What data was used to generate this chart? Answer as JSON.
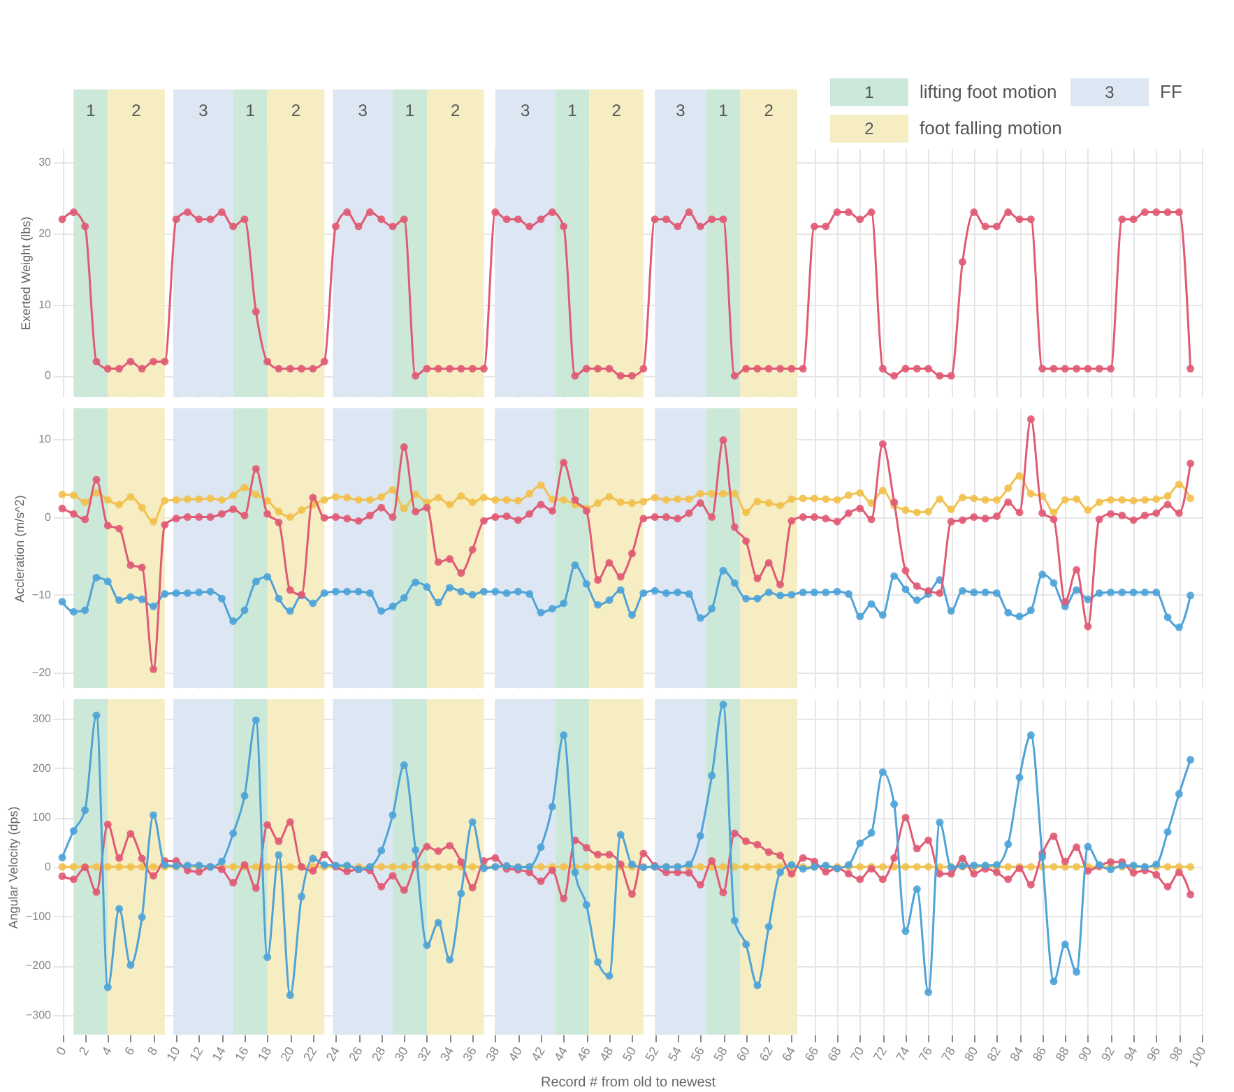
{
  "chart_data": [
    {
      "type": "line",
      "ylabel": "Exerted Weight (lbs)",
      "xlim": [
        -0.8,
        100
      ],
      "ylim": [
        -3,
        32
      ],
      "yticks": [
        0,
        10,
        20,
        30
      ],
      "xticks": [
        0,
        2,
        4,
        6,
        8,
        10,
        12,
        14,
        16,
        18,
        20,
        22,
        24,
        26,
        28,
        30,
        32,
        34,
        36,
        38,
        40,
        42,
        44,
        46,
        48,
        50,
        52,
        54,
        56,
        58,
        60,
        62,
        64,
        66,
        68,
        70,
        72,
        74,
        76,
        78,
        80,
        82,
        84,
        86,
        88,
        90,
        92,
        94,
        96,
        98,
        100
      ],
      "grid": true,
      "tick_labels": "y",
      "marker": "circle",
      "line_style": "solid",
      "annotations": [
        "lifting foot motion",
        "foot falling motion",
        "FF"
      ],
      "x": [
        0,
        1,
        2,
        3,
        4,
        5,
        6,
        7,
        8,
        9,
        10,
        11,
        12,
        13,
        14,
        15,
        16,
        17,
        18,
        19,
        20,
        21,
        22,
        23,
        24,
        25,
        26,
        27,
        28,
        29,
        30,
        31,
        32,
        33,
        34,
        35,
        36,
        37,
        38,
        39,
        40,
        41,
        42,
        43,
        44,
        45,
        46,
        47,
        48,
        49,
        50,
        51,
        52,
        53,
        54,
        55,
        56,
        57,
        58,
        59,
        60,
        61,
        62,
        63,
        64,
        65,
        66,
        67,
        68,
        69,
        70,
        71,
        72,
        73,
        74,
        75,
        76,
        77,
        78,
        79,
        80,
        81,
        82,
        83,
        84,
        85,
        86,
        87,
        88,
        89,
        90,
        91,
        92,
        93,
        94,
        95,
        96,
        97,
        98,
        99
      ],
      "series": [
        {
          "color": "#e05a74",
          "values": [
            22,
            23,
            21,
            2,
            1,
            1,
            2,
            1,
            2,
            2,
            22,
            23,
            22,
            22,
            23,
            21,
            22,
            9,
            2,
            1,
            1,
            1,
            1,
            2,
            21,
            23,
            21,
            23,
            22,
            21,
            22,
            0,
            1,
            1,
            1,
            1,
            1,
            1,
            23,
            22,
            22,
            21,
            22,
            23,
            21,
            0,
            1,
            1,
            1,
            0,
            0,
            1,
            22,
            22,
            21,
            23,
            21,
            22,
            22,
            0,
            1,
            1,
            1,
            1,
            1,
            1,
            21,
            21,
            23,
            23,
            22,
            23,
            1,
            0,
            1,
            1,
            1,
            0,
            0,
            16,
            23,
            21,
            21,
            23,
            22,
            22,
            1,
            1,
            1,
            1,
            1,
            1,
            1,
            22,
            22,
            23,
            23,
            23,
            23,
            1
          ]
        }
      ],
      "bands": [
        {
          "axis": "x",
          "from": 1,
          "to": 4,
          "label": "1",
          "color": "#cce8d8"
        },
        {
          "axis": "x",
          "from": 4,
          "to": 9,
          "label": "2",
          "color": "#f6edc3"
        },
        {
          "axis": "x",
          "from": 9.75,
          "to": 15,
          "label": "3",
          "color": "#dde7f3"
        },
        {
          "axis": "x",
          "from": 15,
          "to": 18,
          "label": "1",
          "color": "#cce8d8"
        },
        {
          "axis": "x",
          "from": 18,
          "to": 23,
          "label": "2",
          "color": "#f6edc3"
        },
        {
          "axis": "x",
          "from": 23.75,
          "to": 29,
          "label": "3",
          "color": "#dde7f3"
        },
        {
          "axis": "x",
          "from": 29,
          "to": 32,
          "label": "1",
          "color": "#cce8d8"
        },
        {
          "axis": "x",
          "from": 32,
          "to": 37,
          "label": "2",
          "color": "#f6edc3"
        },
        {
          "axis": "x",
          "from": 38,
          "to": 43.25,
          "label": "3",
          "color": "#dde7f3"
        },
        {
          "axis": "x",
          "from": 43.25,
          "to": 46.25,
          "label": "1",
          "color": "#cce8d8"
        },
        {
          "axis": "x",
          "from": 46.25,
          "to": 51,
          "label": "2",
          "color": "#f6edc3"
        },
        {
          "axis": "x",
          "from": 52,
          "to": 56.5,
          "label": "3",
          "color": "#dde7f3"
        },
        {
          "axis": "x",
          "from": 56.5,
          "to": 59.5,
          "label": "1",
          "color": "#cce8d8"
        },
        {
          "axis": "x",
          "from": 59.5,
          "to": 64.5,
          "label": "2",
          "color": "#f6edc3"
        }
      ]
    },
    {
      "type": "line",
      "ylabel": "Accleration (m/s^2)",
      "xlim": [
        -0.8,
        100
      ],
      "ylim": [
        -22,
        14
      ],
      "yticks": [
        -20,
        -10,
        0,
        10
      ],
      "xticks": [
        0,
        2,
        4,
        6,
        8,
        10,
        12,
        14,
        16,
        18,
        20,
        22,
        24,
        26,
        28,
        30,
        32,
        34,
        36,
        38,
        40,
        42,
        44,
        46,
        48,
        50,
        52,
        54,
        56,
        58,
        60,
        62,
        64,
        66,
        68,
        70,
        72,
        74,
        76,
        78,
        80,
        82,
        84,
        86,
        88,
        90,
        92,
        94,
        96,
        98,
        100
      ],
      "grid": true,
      "tick_labels": "y",
      "marker": "circle",
      "line_style": "solid",
      "x": [
        0,
        1,
        2,
        3,
        4,
        5,
        6,
        7,
        8,
        9,
        10,
        11,
        12,
        13,
        14,
        15,
        16,
        17,
        18,
        19,
        20,
        21,
        22,
        23,
        24,
        25,
        26,
        27,
        28,
        29,
        30,
        31,
        32,
        33,
        34,
        35,
        36,
        37,
        38,
        39,
        40,
        41,
        42,
        43,
        44,
        45,
        46,
        47,
        48,
        49,
        50,
        51,
        52,
        53,
        54,
        55,
        56,
        57,
        58,
        59,
        60,
        61,
        62,
        63,
        64,
        65,
        66,
        67,
        68,
        69,
        70,
        71,
        72,
        73,
        74,
        75,
        76,
        77,
        78,
        79,
        80,
        81,
        82,
        83,
        84,
        85,
        86,
        87,
        88,
        89,
        90,
        91,
        92,
        93,
        94,
        95,
        96,
        97,
        98,
        99
      ],
      "series": [
        {
          "color": "#f2c14e",
          "values": [
            2.9,
            2.8,
            1.9,
            3.1,
            2.2,
            1.6,
            2.6,
            1.2,
            -0.6,
            2.1,
            2.2,
            2.3,
            2.3,
            2.4,
            2.2,
            2.8,
            3.8,
            2.9,
            2.1,
            0.7,
            0,
            0.9,
            1.6,
            2.2,
            2.6,
            2.5,
            2.2,
            2.2,
            2.6,
            3.5,
            1.1,
            2.9,
            1.9,
            2.5,
            1.6,
            2.7,
            1.9,
            2.5,
            2.2,
            2.2,
            2.1,
            3.0,
            4.1,
            2.3,
            2.2,
            1.6,
            1.1,
            1.8,
            2.6,
            1.9,
            1.8,
            2.0,
            2.5,
            2.2,
            2.3,
            2.3,
            3.0,
            3.0,
            3.0,
            3.0,
            0.6,
            2.0,
            1.8,
            1.5,
            2.3,
            2.4,
            2.4,
            2.3,
            2.2,
            2.8,
            3.1,
            1.8,
            3.4,
            1.5,
            0.9,
            0.6,
            0.7,
            2.3,
            1.0,
            2.5,
            2.4,
            2.2,
            2.2,
            3.7,
            5.3,
            3.0,
            2.7,
            0.6,
            2.2,
            2.3,
            0.9,
            1.9,
            2.2,
            2.2,
            2.1,
            2.2,
            2.3,
            2.7,
            4.2,
            2.4
          ]
        },
        {
          "color": "#4ea3d8",
          "values": [
            -10.9,
            -12.2,
            -12.0,
            -7.8,
            -8.3,
            -10.7,
            -10.3,
            -10.6,
            -11.5,
            -9.9,
            -9.8,
            -9.8,
            -9.7,
            -9.6,
            -10.5,
            -13.4,
            -12.0,
            -8.3,
            -7.7,
            -10.5,
            -12.1,
            -10.1,
            -11.1,
            -9.8,
            -9.6,
            -9.6,
            -9.6,
            -9.8,
            -12.1,
            -11.5,
            -10.4,
            -8.4,
            -9.0,
            -11.0,
            -9.1,
            -9.6,
            -10.0,
            -9.6,
            -9.6,
            -9.8,
            -9.6,
            -9.9,
            -12.3,
            -11.8,
            -11.1,
            -6.2,
            -8.6,
            -11.3,
            -10.7,
            -9.4,
            -12.6,
            -9.8,
            -9.5,
            -9.8,
            -9.7,
            -9.9,
            -13.0,
            -11.8,
            -6.9,
            -8.5,
            -10.5,
            -10.5,
            -9.7,
            -10.1,
            -10.0,
            -9.7,
            -9.7,
            -9.7,
            -9.6,
            -9.9,
            -12.8,
            -11.2,
            -12.6,
            -7.6,
            -9.3,
            -10.7,
            -9.9,
            -8.1,
            -12.1,
            -9.5,
            -9.7,
            -9.7,
            -9.8,
            -12.3,
            -12.8,
            -12.0,
            -7.4,
            -8.5,
            -11.5,
            -9.4,
            -10.6,
            -9.8,
            -9.7,
            -9.7,
            -9.7,
            -9.7,
            -9.7,
            -12.9,
            -14.2,
            -10.1
          ]
        },
        {
          "color": "#e05a74",
          "values": [
            1.1,
            0.4,
            -0.3,
            4.8,
            -1.1,
            -1.5,
            -6.2,
            -6.5,
            -19.6,
            -1.0,
            -0.2,
            0,
            0,
            0,
            0.4,
            1.0,
            0.2,
            6.2,
            0.4,
            -0.7,
            -9.4,
            -10.0,
            2.5,
            -0.1,
            0,
            -0.2,
            -0.5,
            0.2,
            1.2,
            0,
            9.0,
            0.7,
            1.2,
            -5.8,
            -5.4,
            -7.2,
            -4.2,
            -0.5,
            0,
            0.1,
            -0.4,
            0.4,
            1.6,
            0.8,
            7.0,
            2.2,
            0.8,
            -8.1,
            -5.9,
            -7.7,
            -4.7,
            -0.2,
            0,
            0,
            -0.2,
            0.5,
            1.8,
            0,
            9.9,
            -1.3,
            -3.1,
            -7.9,
            -5.9,
            -8.7,
            -0.5,
            0,
            0,
            -0.2,
            -0.6,
            0.5,
            1.1,
            -0.3,
            9.4,
            1.9,
            -6.9,
            -8.9,
            -9.5,
            -9.8,
            -0.6,
            -0.4,
            0,
            -0.2,
            0.1,
            1.9,
            0.6,
            12.6,
            0.5,
            -0.3,
            -10.9,
            -6.8,
            -14.1,
            -0.3,
            0.4,
            0.2,
            -0.4,
            0.2,
            0.5,
            1.6,
            0.5,
            6.9
          ]
        }
      ],
      "bands": [
        {
          "axis": "x",
          "from": 1,
          "to": 4,
          "color": "#cce8d8"
        },
        {
          "axis": "x",
          "from": 4,
          "to": 9,
          "color": "#f6edc3"
        },
        {
          "axis": "x",
          "from": 9.75,
          "to": 15,
          "color": "#dde7f3"
        },
        {
          "axis": "x",
          "from": 15,
          "to": 18,
          "color": "#cce8d8"
        },
        {
          "axis": "x",
          "from": 18,
          "to": 23,
          "color": "#f6edc3"
        },
        {
          "axis": "x",
          "from": 23.75,
          "to": 29,
          "color": "#dde7f3"
        },
        {
          "axis": "x",
          "from": 29,
          "to": 32,
          "color": "#cce8d8"
        },
        {
          "axis": "x",
          "from": 32,
          "to": 37,
          "color": "#f6edc3"
        },
        {
          "axis": "x",
          "from": 38,
          "to": 43.25,
          "color": "#dde7f3"
        },
        {
          "axis": "x",
          "from": 43.25,
          "to": 46.25,
          "color": "#cce8d8"
        },
        {
          "axis": "x",
          "from": 46.25,
          "to": 51,
          "color": "#f6edc3"
        },
        {
          "axis": "x",
          "from": 52,
          "to": 56.5,
          "color": "#dde7f3"
        },
        {
          "axis": "x",
          "from": 56.5,
          "to": 59.5,
          "color": "#cce8d8"
        },
        {
          "axis": "x",
          "from": 59.5,
          "to": 64.5,
          "color": "#f6edc3"
        }
      ]
    },
    {
      "type": "line",
      "xlabel": "Record # from old to newest",
      "ylabel": "Angular Velocity (dps)",
      "xlim": [
        -0.8,
        100
      ],
      "ylim": [
        -340,
        340
      ],
      "yticks": [
        -300,
        -200,
        -100,
        0,
        100,
        200,
        300
      ],
      "xticks": [
        0,
        2,
        4,
        6,
        8,
        10,
        12,
        14,
        16,
        18,
        20,
        22,
        24,
        26,
        28,
        30,
        32,
        34,
        36,
        38,
        40,
        42,
        44,
        46,
        48,
        50,
        52,
        54,
        56,
        58,
        60,
        62,
        64,
        66,
        68,
        70,
        72,
        74,
        76,
        78,
        80,
        82,
        84,
        86,
        88,
        90,
        92,
        94,
        96,
        98,
        100
      ],
      "grid": true,
      "marker": "circle",
      "line_style": "solid",
      "x": [
        0,
        1,
        2,
        3,
        4,
        5,
        6,
        7,
        8,
        9,
        10,
        11,
        12,
        13,
        14,
        15,
        16,
        17,
        18,
        19,
        20,
        21,
        22,
        23,
        24,
        25,
        26,
        27,
        28,
        29,
        30,
        31,
        32,
        33,
        34,
        35,
        36,
        37,
        38,
        39,
        40,
        41,
        42,
        43,
        44,
        45,
        46,
        47,
        48,
        49,
        50,
        51,
        52,
        53,
        54,
        55,
        56,
        57,
        58,
        59,
        60,
        61,
        62,
        63,
        64,
        65,
        66,
        67,
        68,
        69,
        70,
        71,
        72,
        73,
        74,
        75,
        76,
        77,
        78,
        79,
        80,
        81,
        82,
        83,
        84,
        85,
        86,
        87,
        88,
        89,
        90,
        91,
        92,
        93,
        94,
        95,
        96,
        97,
        98,
        99
      ],
      "series": [
        {
          "color": "#f2c14e",
          "values": [
            0,
            0,
            0,
            0,
            0,
            0,
            0,
            0,
            0,
            0,
            0,
            0,
            0,
            0,
            0,
            0,
            0,
            0,
            0,
            0,
            0,
            0,
            0,
            0,
            0,
            0,
            0,
            0,
            0,
            0,
            0,
            0,
            0,
            0,
            0,
            0,
            0,
            0,
            0,
            0,
            0,
            0,
            0,
            0,
            0,
            0,
            0,
            0,
            0,
            0,
            0,
            0,
            0,
            0,
            0,
            0,
            0,
            0,
            0,
            0,
            0,
            0,
            0,
            0,
            0,
            0,
            0,
            0,
            0,
            0,
            0,
            0,
            0,
            0,
            0,
            0,
            0,
            0,
            0,
            0,
            0,
            0,
            0,
            0,
            0,
            0,
            0,
            0,
            0,
            0,
            0,
            0,
            0,
            0,
            0,
            0,
            0,
            0,
            0,
            0
          ]
        },
        {
          "color": "#e05a74",
          "values": [
            -19,
            -25,
            -1,
            -51,
            86,
            18,
            67,
            17,
            -18,
            12,
            12,
            -7,
            -10,
            0,
            -5,
            -32,
            4,
            -43,
            85,
            52,
            91,
            0,
            -8,
            25,
            1,
            -9,
            -5,
            -7,
            -40,
            -18,
            -47,
            6,
            41,
            32,
            43,
            10,
            -42,
            12,
            18,
            -4,
            -6,
            -11,
            -29,
            -7,
            -64,
            54,
            39,
            25,
            25,
            5,
            -55,
            27,
            2,
            -11,
            -11,
            -12,
            -36,
            12,
            -52,
            68,
            52,
            45,
            30,
            23,
            -14,
            18,
            11,
            -10,
            -3,
            -14,
            -25,
            -4,
            -25,
            18,
            100,
            37,
            54,
            -14,
            -14,
            17,
            -14,
            -4,
            -11,
            -25,
            -3,
            -36,
            27,
            62,
            11,
            40,
            -8,
            2,
            10,
            10,
            -12,
            -7,
            -16,
            -40,
            -11,
            -56
          ]
        },
        {
          "color": "#4ea3d8",
          "values": [
            19,
            73,
            115,
            307,
            -244,
            -85,
            -199,
            -102,
            105,
            4,
            2,
            3,
            3,
            0,
            11,
            68,
            144,
            297,
            -183,
            24,
            -260,
            -60,
            17,
            4,
            3,
            3,
            -5,
            0,
            33,
            105,
            206,
            34,
            -159,
            -113,
            -188,
            -54,
            91,
            -3,
            0,
            2,
            -1,
            0,
            40,
            122,
            267,
            -11,
            -77,
            -193,
            -221,
            65,
            5,
            -1,
            0,
            0,
            0,
            5,
            63,
            185,
            329,
            -109,
            -157,
            -240,
            -121,
            -11,
            4,
            -4,
            0,
            3,
            -3,
            4,
            48,
            69,
            192,
            127,
            -130,
            -45,
            -254,
            90,
            -1,
            2,
            3,
            3,
            4,
            46,
            181,
            267,
            20,
            -232,
            -157,
            -213,
            41,
            4,
            -5,
            3,
            3,
            0,
            5,
            71,
            148,
            217
          ]
        }
      ],
      "bands": [
        {
          "axis": "x",
          "from": 1,
          "to": 4,
          "color": "#cce8d8"
        },
        {
          "axis": "x",
          "from": 4,
          "to": 9,
          "color": "#f6edc3"
        },
        {
          "axis": "x",
          "from": 9.75,
          "to": 15,
          "color": "#dde7f3"
        },
        {
          "axis": "x",
          "from": 15,
          "to": 18,
          "color": "#cce8d8"
        },
        {
          "axis": "x",
          "from": 18,
          "to": 23,
          "color": "#f6edc3"
        },
        {
          "axis": "x",
          "from": 23.75,
          "to": 29,
          "color": "#dde7f3"
        },
        {
          "axis": "x",
          "from": 29,
          "to": 32,
          "color": "#cce8d8"
        },
        {
          "axis": "x",
          "from": 32,
          "to": 37,
          "color": "#f6edc3"
        },
        {
          "axis": "x",
          "from": 38,
          "to": 43.25,
          "color": "#dde7f3"
        },
        {
          "axis": "x",
          "from": 43.25,
          "to": 46.25,
          "color": "#cce8d8"
        },
        {
          "axis": "x",
          "from": 46.25,
          "to": 51,
          "color": "#f6edc3"
        },
        {
          "axis": "x",
          "from": 52,
          "to": 56.5,
          "color": "#dde7f3"
        },
        {
          "axis": "x",
          "from": 56.5,
          "to": 59.5,
          "color": "#cce8d8"
        },
        {
          "axis": "x",
          "from": 59.5,
          "to": 64.5,
          "color": "#f6edc3"
        }
      ]
    }
  ]
}
